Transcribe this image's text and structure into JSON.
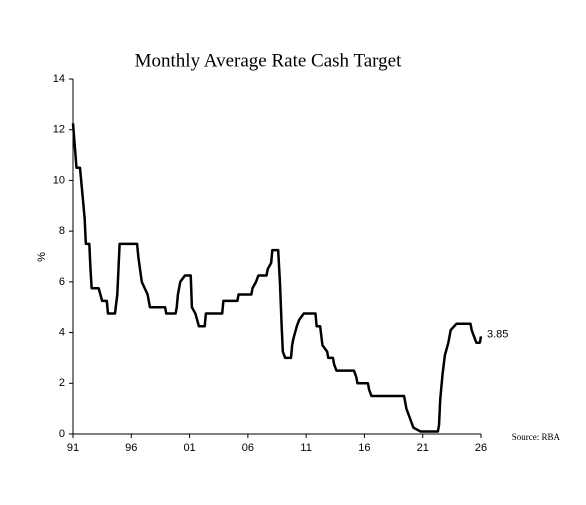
{
  "chart_data": {
    "type": "line",
    "title": "Monthly Average Rate Cash Target",
    "y_label": "%",
    "source": "Source: RBA",
    "xlim": [
      1991,
      2026
    ],
    "xticks": [
      {
        "value": 1991,
        "label": "91"
      },
      {
        "value": 1996,
        "label": "96"
      },
      {
        "value": 2001,
        "label": "01"
      },
      {
        "value": 2006,
        "label": "06"
      },
      {
        "value": 2011,
        "label": "11"
      },
      {
        "value": 2016,
        "label": "16"
      },
      {
        "value": 2021,
        "label": "21"
      },
      {
        "value": 2026,
        "label": "26"
      }
    ],
    "ylim": [
      0,
      14
    ],
    "yticks": [
      0,
      2,
      4,
      6,
      8,
      10,
      12,
      14
    ],
    "series": [
      {
        "color": "#000000",
        "x": [
          1991.0,
          1991.3,
          1991.6,
          1991.8,
          1992.0,
          1992.1,
          1992.4,
          1992.5,
          1992.6,
          1993.2,
          1993.5,
          1993.9,
          1994.0,
          1994.6,
          1994.8,
          1994.9,
          1995.0,
          1996.5,
          1996.6,
          1996.9,
          1997.4,
          1997.6,
          1998.9,
          1999.0,
          1999.8,
          1999.9,
          2000.0,
          2000.2,
          2000.6,
          2001.1,
          2001.2,
          2001.5,
          2001.8,
          2002.3,
          2002.4,
          2003.8,
          2003.9,
          2005.1,
          2005.2,
          2006.3,
          2006.4,
          2006.7,
          2006.9,
          2007.6,
          2007.7,
          2008.0,
          2008.1,
          2008.6,
          2008.75,
          2008.9,
          2009.0,
          2009.2,
          2009.7,
          2009.8,
          2009.9,
          2010.2,
          2010.4,
          2010.8,
          2011.8,
          2011.9,
          2012.2,
          2012.4,
          2012.8,
          2012.9,
          2013.3,
          2013.4,
          2013.6,
          2015.1,
          2015.3,
          2015.4,
          2016.3,
          2016.4,
          2016.6,
          2019.4,
          2019.5,
          2019.6,
          2019.8,
          2020.2,
          2020.8,
          2022.3,
          2022.4,
          2022.5,
          2022.7,
          2022.9,
          2023.2,
          2023.4,
          2023.9,
          2025.1,
          2025.2,
          2025.4,
          2025.6,
          2025.9,
          2026.0
        ],
        "values": [
          12.25,
          10.5,
          10.5,
          9.5,
          8.5,
          7.5,
          7.5,
          6.5,
          5.75,
          5.75,
          5.25,
          5.25,
          4.75,
          4.75,
          5.5,
          6.5,
          7.5,
          7.5,
          7.0,
          6.0,
          5.5,
          5.0,
          5.0,
          4.75,
          4.75,
          5.0,
          5.5,
          6.0,
          6.25,
          6.25,
          5.0,
          4.75,
          4.25,
          4.25,
          4.75,
          4.75,
          5.25,
          5.25,
          5.5,
          5.5,
          5.75,
          6.0,
          6.25,
          6.25,
          6.5,
          6.75,
          7.25,
          7.25,
          6.0,
          4.25,
          3.25,
          3.0,
          3.0,
          3.5,
          3.75,
          4.25,
          4.5,
          4.75,
          4.75,
          4.25,
          4.25,
          3.5,
          3.25,
          3.0,
          3.0,
          2.75,
          2.5,
          2.5,
          2.25,
          2.0,
          2.0,
          1.75,
          1.5,
          1.5,
          1.25,
          1.0,
          0.75,
          0.25,
          0.1,
          0.1,
          0.35,
          1.35,
          2.35,
          3.1,
          3.6,
          4.1,
          4.35,
          4.35,
          4.1,
          3.85,
          3.6,
          3.6,
          3.85
        ]
      }
    ]
  }
}
